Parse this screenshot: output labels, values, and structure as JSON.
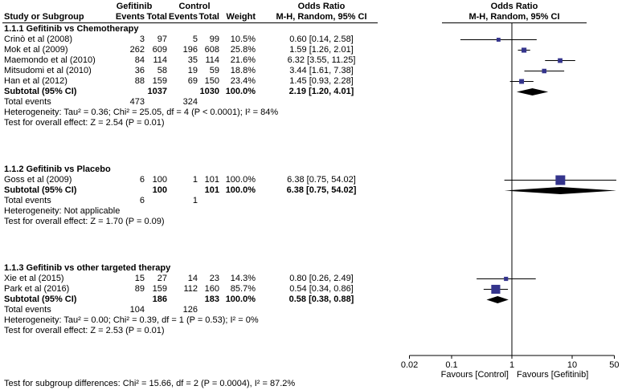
{
  "chart_data": {
    "type": "forest_plot",
    "headers": {
      "group1": "Gefitinib",
      "group2": "Control",
      "or_col": "Odds Ratio",
      "or_plot_col": "Odds Ratio",
      "study": "Study or Subgroup",
      "events": "Events",
      "total": "Total",
      "weight": "Weight",
      "ci": "M-H, Random, 95% CI",
      "ci_plot": "M-H, Random, 95% CI"
    },
    "subgroups": [
      {
        "label": "1.1.1 Gefitinib vs Chemotherapy",
        "studies": [
          {
            "name": "Crinò et al (2008)",
            "e1": "3",
            "t1": "97",
            "e2": "5",
            "t2": "99",
            "weight": "10.5%",
            "weight_pct": 10.5,
            "or": 0.6,
            "lo": 0.14,
            "hi": 2.58,
            "ci_text": "0.60 [0.14, 2.58]"
          },
          {
            "name": "Mok et al (2009)",
            "e1": "262",
            "t1": "609",
            "e2": "196",
            "t2": "608",
            "weight": "25.8%",
            "weight_pct": 25.8,
            "or": 1.59,
            "lo": 1.26,
            "hi": 2.01,
            "ci_text": "1.59 [1.26, 2.01]"
          },
          {
            "name": "Maemondo et al (2010)",
            "e1": "84",
            "t1": "114",
            "e2": "35",
            "t2": "114",
            "weight": "21.6%",
            "weight_pct": 21.6,
            "or": 6.32,
            "lo": 3.55,
            "hi": 11.25,
            "ci_text": "6.32 [3.55, 11.25]"
          },
          {
            "name": "Mitsudomi et al (2010)",
            "e1": "36",
            "t1": "58",
            "e2": "19",
            "t2": "59",
            "weight": "18.8%",
            "weight_pct": 18.8,
            "or": 3.44,
            "lo": 1.61,
            "hi": 7.38,
            "ci_text": "3.44 [1.61, 7.38]"
          },
          {
            "name": "Han et al (2012)",
            "e1": "88",
            "t1": "159",
            "e2": "69",
            "t2": "150",
            "weight": "23.4%",
            "weight_pct": 23.4,
            "or": 1.45,
            "lo": 0.93,
            "hi": 2.28,
            "ci_text": "1.45 [0.93, 2.28]"
          }
        ],
        "subtotal": {
          "label": "Subtotal (95% CI)",
          "t1": "1037",
          "t2": "1030",
          "weight": "100.0%",
          "or": 2.19,
          "lo": 1.2,
          "hi": 4.01,
          "ci_text": "2.19 [1.20, 4.01]"
        },
        "total_events": {
          "label": "Total events",
          "e1": "473",
          "e2": "324"
        },
        "heterogeneity": "Heterogeneity: Tau² = 0.36; Chi² = 25.05, df = 4 (P < 0.0001); I² = 84%",
        "overall_effect": "Test for overall effect: Z = 2.54 (P = 0.01)"
      },
      {
        "label": "1.1.2 Gefitinib vs Placebo",
        "studies": [
          {
            "name": "Goss et al (2009)",
            "e1": "6",
            "t1": "100",
            "e2": "1",
            "t2": "101",
            "weight": "100.0%",
            "weight_pct": 100.0,
            "or": 6.38,
            "lo": 0.75,
            "hi": 54.02,
            "ci_text": "6.38 [0.75, 54.02]"
          }
        ],
        "subtotal": {
          "label": "Subtotal (95% CI)",
          "t1": "100",
          "t2": "101",
          "weight": "100.0%",
          "or": 6.38,
          "lo": 0.75,
          "hi": 54.02,
          "ci_text": "6.38 [0.75, 54.02]"
        },
        "total_events": {
          "label": "Total events",
          "e1": "6",
          "e2": "1"
        },
        "heterogeneity": "Heterogeneity: Not applicable",
        "overall_effect": "Test for overall effect: Z = 1.70 (P = 0.09)"
      },
      {
        "label": "1.1.3 Gefitinib vs other targeted therapy",
        "studies": [
          {
            "name": "Xie et al (2015)",
            "e1": "15",
            "t1": "27",
            "e2": "14",
            "t2": "23",
            "weight": "14.3%",
            "weight_pct": 14.3,
            "or": 0.8,
            "lo": 0.26,
            "hi": 2.49,
            "ci_text": "0.80 [0.26, 2.49]"
          },
          {
            "name": "Park et al (2016)",
            "e1": "89",
            "t1": "159",
            "e2": "112",
            "t2": "160",
            "weight": "85.7%",
            "weight_pct": 85.7,
            "or": 0.54,
            "lo": 0.34,
            "hi": 0.86,
            "ci_text": "0.54 [0.34, 0.86]"
          }
        ],
        "subtotal": {
          "label": "Subtotal (95% CI)",
          "t1": "186",
          "t2": "183",
          "weight": "100.0%",
          "or": 0.58,
          "lo": 0.38,
          "hi": 0.88,
          "ci_text": "0.58 [0.38, 0.88]"
        },
        "total_events": {
          "label": "Total events",
          "e1": "104",
          "e2": "126"
        },
        "heterogeneity": "Heterogeneity: Tau² = 0.00; Chi² = 0.39, df = 1 (P = 0.53); I² = 0%",
        "overall_effect": "Test for overall effect: Z = 2.53 (P = 0.01)"
      }
    ],
    "axis": {
      "scale": "log",
      "xmin": 0.02,
      "xmax": 50,
      "ticks": [
        "0.02",
        "0.1",
        "1",
        "10",
        "50"
      ],
      "favours_left": "Favours [Control]",
      "favours_right": "Favours [Gefitinib]"
    },
    "footer": "Test for subgroup differences: Chi² = 15.66, df = 2 (P = 0.0004), I² = 87.2%",
    "colors": {
      "marker": "#34348c",
      "diamond": "#000000",
      "line": "#000000"
    }
  }
}
